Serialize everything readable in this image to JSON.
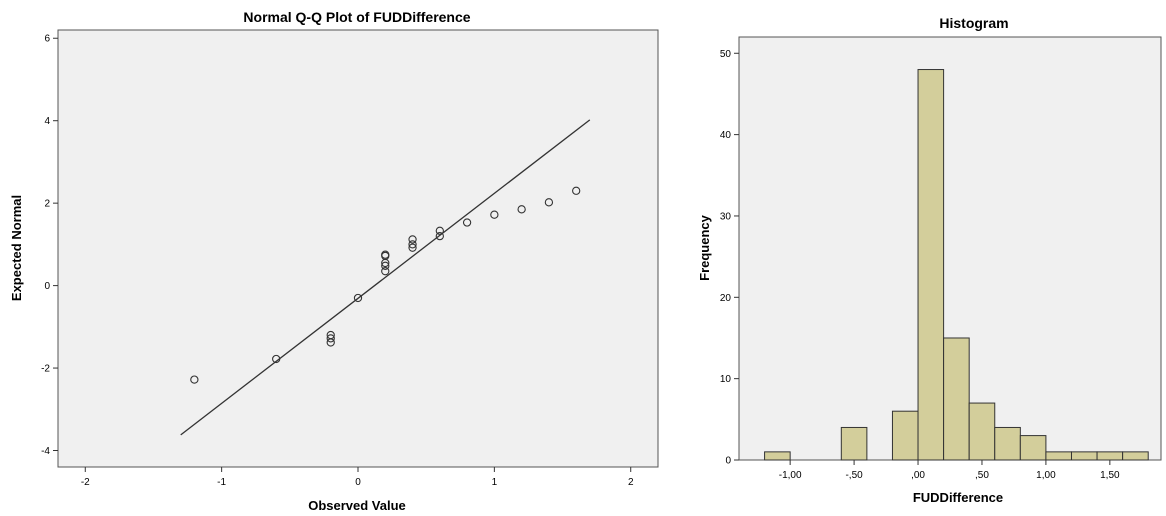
{
  "chart_data": [
    {
      "type": "scatter",
      "title": "Normal Q-Q Plot of FUDDifference",
      "xlabel": "Observed Value",
      "ylabel": "Expected Normal",
      "xlim": [
        -2.2,
        2.2
      ],
      "ylim": [
        -4.4,
        6.2
      ],
      "xticks": [
        -2,
        -1,
        0,
        1,
        2
      ],
      "xtick_labels": [
        "-2",
        "-1",
        "0",
        "1",
        "2"
      ],
      "yticks": [
        -4,
        -2,
        0,
        2,
        4,
        6
      ],
      "ytick_labels": [
        "-4",
        "-2",
        "0",
        "2",
        "4",
        "6"
      ],
      "points": [
        {
          "x": -1.2,
          "y": -2.28
        },
        {
          "x": -0.6,
          "y": -1.78
        },
        {
          "x": -0.2,
          "y": -1.2
        },
        {
          "x": -0.2,
          "y": -1.28
        },
        {
          "x": -0.2,
          "y": -1.38
        },
        {
          "x": 0.0,
          "y": -0.3
        },
        {
          "x": 0.2,
          "y": 0.35
        },
        {
          "x": 0.2,
          "y": 0.48
        },
        {
          "x": 0.2,
          "y": 0.55
        },
        {
          "x": 0.2,
          "y": 0.72
        },
        {
          "x": 0.2,
          "y": 0.75
        },
        {
          "x": 0.4,
          "y": 0.92
        },
        {
          "x": 0.4,
          "y": 1.0
        },
        {
          "x": 0.4,
          "y": 1.12
        },
        {
          "x": 0.6,
          "y": 1.2
        },
        {
          "x": 0.6,
          "y": 1.33
        },
        {
          "x": 0.8,
          "y": 1.53
        },
        {
          "x": 1.0,
          "y": 1.72
        },
        {
          "x": 1.2,
          "y": 1.85
        },
        {
          "x": 1.4,
          "y": 2.02
        },
        {
          "x": 1.6,
          "y": 2.3
        }
      ],
      "reference_line": {
        "x": [
          -1.3,
          1.7
        ],
        "y": [
          -3.62,
          4.02
        ]
      },
      "grid": false,
      "background": "#f0f0f0"
    },
    {
      "type": "bar",
      "title": "Histogram",
      "xlabel": "FUDDifference",
      "ylabel": "Frequency",
      "bin_width": 0.2,
      "bins": [
        {
          "start": -1.2,
          "end": -1.0,
          "count": 1
        },
        {
          "start": -0.6,
          "end": -0.4,
          "count": 4
        },
        {
          "start": -0.2,
          "end": 0.0,
          "count": 6
        },
        {
          "start": 0.0,
          "end": 0.2,
          "count": 48
        },
        {
          "start": 0.2,
          "end": 0.4,
          "count": 15
        },
        {
          "start": 0.4,
          "end": 0.6,
          "count": 7
        },
        {
          "start": 0.6,
          "end": 0.8,
          "count": 4
        },
        {
          "start": 0.8,
          "end": 1.0,
          "count": 3
        },
        {
          "start": 1.0,
          "end": 1.2,
          "count": 1
        },
        {
          "start": 1.2,
          "end": 1.4,
          "count": 1
        },
        {
          "start": 1.4,
          "end": 1.6,
          "count": 1
        },
        {
          "start": 1.6,
          "end": 1.8,
          "count": 1
        }
      ],
      "xlim": [
        -1.4,
        1.9
      ],
      "ylim": [
        0,
        52
      ],
      "xticks": [
        -1.0,
        -0.5,
        0.0,
        0.5,
        1.0,
        1.5
      ],
      "xtick_labels": [
        "-1,00",
        "-,50",
        ",00",
        ",50",
        "1,00",
        "1,50"
      ],
      "yticks": [
        0,
        10,
        20,
        30,
        40,
        50
      ],
      "ytick_labels": [
        "0",
        "10",
        "20",
        "30",
        "40",
        "50"
      ],
      "grid": false,
      "bar_color": "#d3ce9b",
      "background": "#f0f0f0"
    }
  ]
}
